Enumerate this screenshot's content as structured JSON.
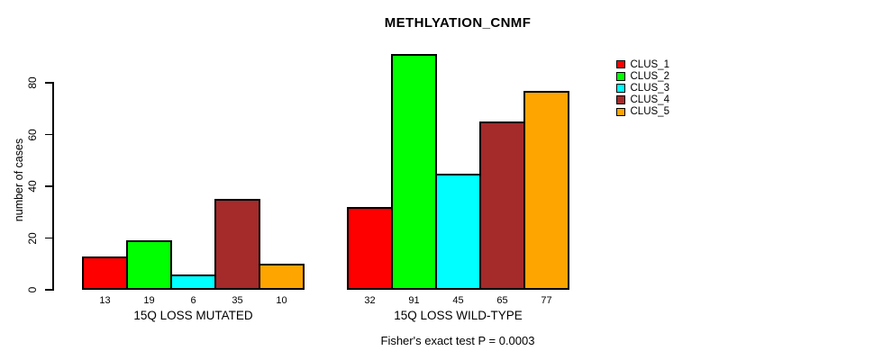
{
  "chart_data": {
    "type": "bar",
    "title": "METHLYATION_CNMF",
    "ylabel": "number of cases",
    "xlabel": "",
    "ylim": [
      0,
      93
    ],
    "yticks": [
      0,
      20,
      40,
      60,
      80
    ],
    "grid": false,
    "legend_position": "right-outside-top",
    "categories": [
      "15Q LOSS MUTATED",
      "15Q LOSS WILD-TYPE"
    ],
    "series": [
      {
        "name": "CLUS_1",
        "color": "#FF0000",
        "values": [
          13,
          32
        ]
      },
      {
        "name": "CLUS_2",
        "color": "#00FF00",
        "values": [
          19,
          91
        ]
      },
      {
        "name": "CLUS_3",
        "color": "#00FFFF",
        "values": [
          6,
          45
        ]
      },
      {
        "name": "CLUS_4",
        "color": "#A52A2A",
        "values": [
          35,
          65
        ]
      },
      {
        "name": "CLUS_5",
        "color": "#FFA500",
        "values": [
          10,
          77
        ]
      }
    ],
    "bar_value_labels": {
      "15Q LOSS MUTATED": [
        13,
        19,
        6,
        35,
        10
      ],
      "15Q LOSS WILD-TYPE": [
        32,
        91,
        45,
        65,
        77
      ]
    },
    "footnote": "Fisher's exact test P = 0.0003",
    "outline_color": "#000000",
    "background_color": "#FFFFFF"
  }
}
